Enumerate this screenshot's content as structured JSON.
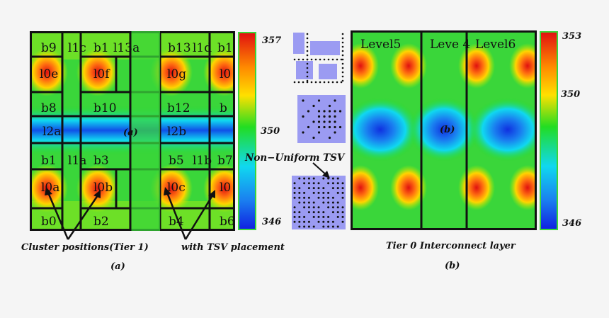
{
  "left_map": {
    "blocks": {
      "b9": "b9",
      "l1c": "l1c",
      "b1": "b1",
      "l13a": "l13a",
      "b13": "b13",
      "l1d": "l1d",
      "b1b": "b1",
      "l0e": "l0e",
      "l0f": "l0f",
      "l0g": "l0g",
      "l0h": "l0",
      "b8": "b8",
      "b10": "b10",
      "b12": "b12",
      "b14": "b",
      "l2a": "l2a",
      "l2b": "l2b",
      "b1c": "b1",
      "l1a": "l1a",
      "b3": "b3",
      "b5": "b5",
      "l1b": "l1b",
      "b7": "b7",
      "l0a": "l0a",
      "l0b": "l0b",
      "l0c": "l0c",
      "l0d": "l0",
      "b0": "b0",
      "b2": "b2",
      "b4": "b4",
      "b6": "b6"
    },
    "marker": "(a)"
  },
  "left_colorbar": {
    "max": "357",
    "mid": "350",
    "min": "346"
  },
  "right_map": {
    "levels": {
      "l5": "Level5",
      "l4": "Leve 4",
      "l6": "Level6"
    },
    "marker": "(b)"
  },
  "right_colorbar": {
    "max": "353",
    "mid": "350",
    "min": "346"
  },
  "annotations": {
    "tsv": "Non−Uniform TSV",
    "cluster": "Cluster positions(Tier 1)",
    "with_tsv": "with TSV placement",
    "tier0": "Tier 0 Interconnect layer",
    "caption_a": "(a)",
    "caption_b": "(b)"
  },
  "colors": {
    "hot": "#e01010",
    "warm": "#ffd400",
    "mid": "#22dd22",
    "cool": "#10d8f0",
    "cold": "#1030e0",
    "tsv": "#9b9bf2",
    "dot": "#000000"
  }
}
